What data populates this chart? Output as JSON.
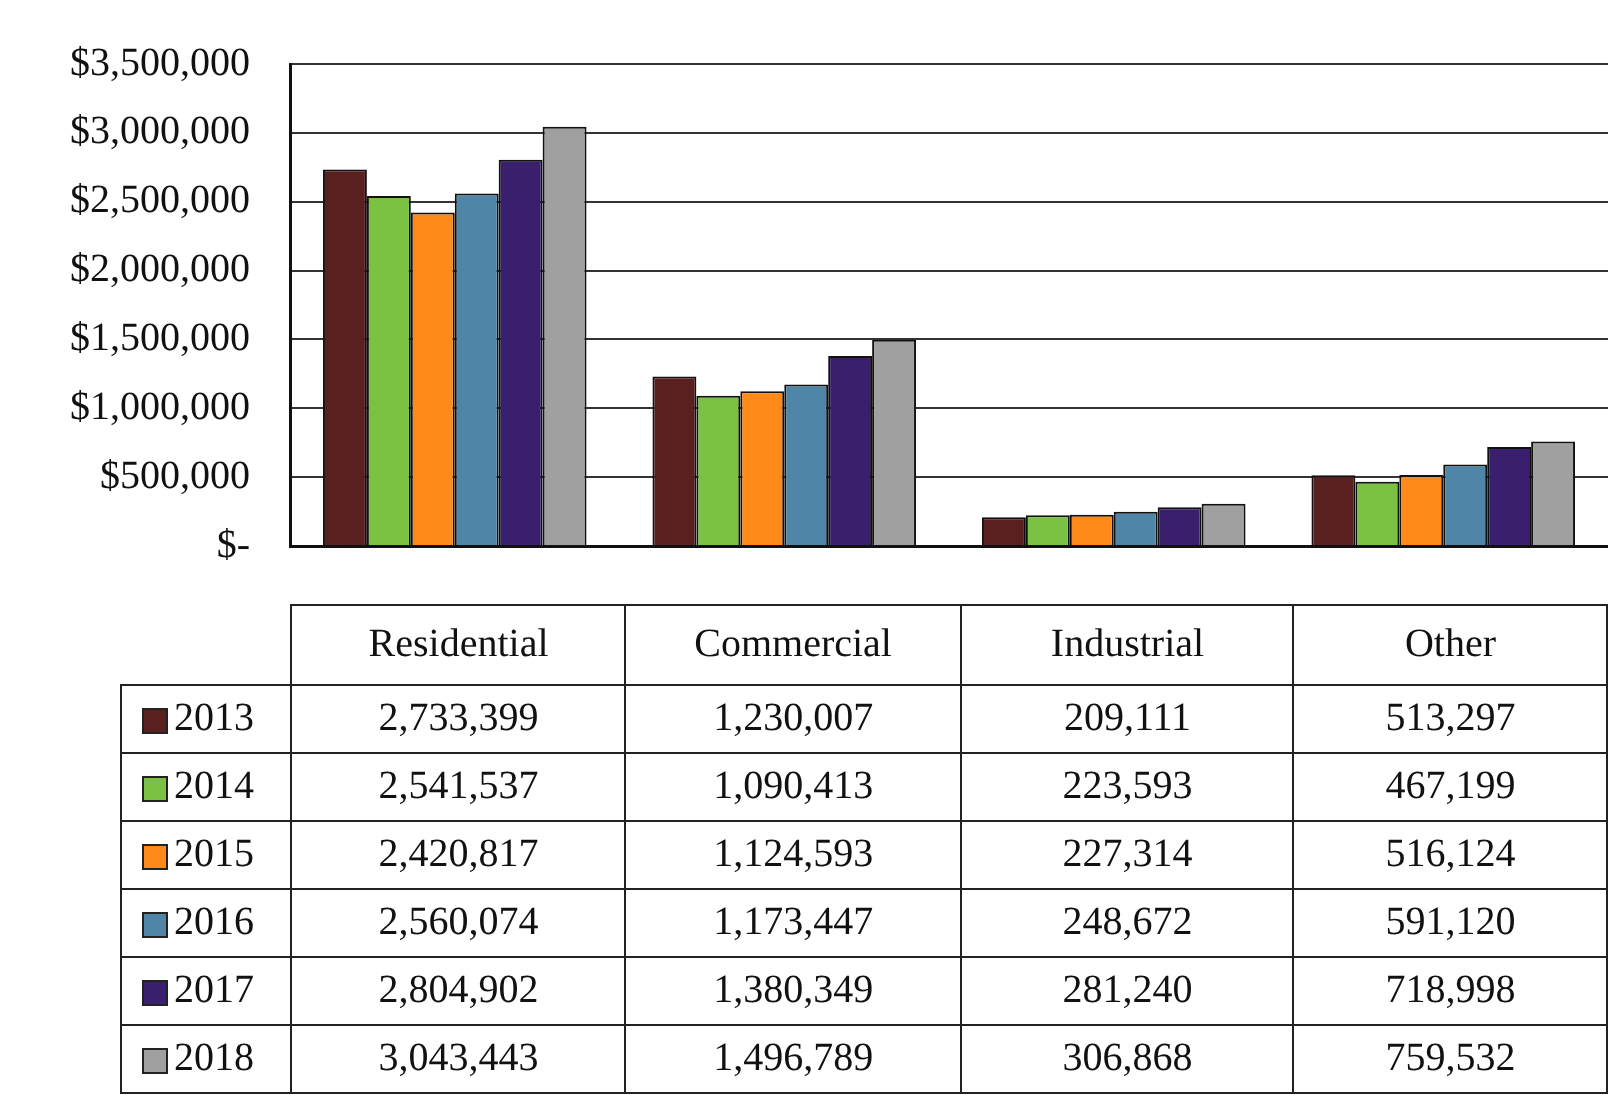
{
  "chart_data": {
    "type": "bar",
    "categories": [
      "Residential",
      "Commercial",
      "Industrial",
      "Other"
    ],
    "series": [
      {
        "name": "2013",
        "color": "#5a1f1f",
        "values": [
          2733399,
          1230007,
          209111,
          513297
        ],
        "value_labels": [
          "2,733,399",
          "1,230,007",
          "209,111",
          "513,297"
        ]
      },
      {
        "name": "2014",
        "color": "#7cc242",
        "values": [
          2541537,
          1090413,
          223593,
          467199
        ],
        "value_labels": [
          "2,541,537",
          "1,090,413",
          "223,593",
          "467,199"
        ]
      },
      {
        "name": "2015",
        "color": "#ff8a1a",
        "values": [
          2420817,
          1124593,
          227314,
          516124
        ],
        "value_labels": [
          "2,420,817",
          "1,124,593",
          "227,314",
          "516,124"
        ]
      },
      {
        "name": "2016",
        "color": "#4f86a8",
        "values": [
          2560074,
          1173447,
          248672,
          591120
        ],
        "value_labels": [
          "2,560,074",
          "1,173,447",
          "248,672",
          "591,120"
        ]
      },
      {
        "name": "2017",
        "color": "#3a1f6e",
        "values": [
          2804902,
          1380349,
          281240,
          718998
        ],
        "value_labels": [
          "2,804,902",
          "1,380,349",
          "281,240",
          "718,998"
        ]
      },
      {
        "name": "2018",
        "color": "#a0a0a0",
        "values": [
          3043443,
          1496789,
          306868,
          759532
        ],
        "value_labels": [
          "3,043,443",
          "1,496,789",
          "306,868",
          "759,532"
        ]
      }
    ],
    "ylim": [
      0,
      3500000
    ],
    "yticks": [
      {
        "value": 0,
        "label": "$-"
      },
      {
        "value": 500000,
        "label": "$500,000"
      },
      {
        "value": 1000000,
        "label": "$1,000,000"
      },
      {
        "value": 1500000,
        "label": "$1,500,000"
      },
      {
        "value": 2000000,
        "label": "$2,000,000"
      },
      {
        "value": 2500000,
        "label": "$2,500,000"
      },
      {
        "value": 3000000,
        "label": "$3,000,000"
      },
      {
        "value": 3500000,
        "label": "$3,500,000"
      }
    ],
    "grid": "y",
    "legend": "bottom"
  }
}
